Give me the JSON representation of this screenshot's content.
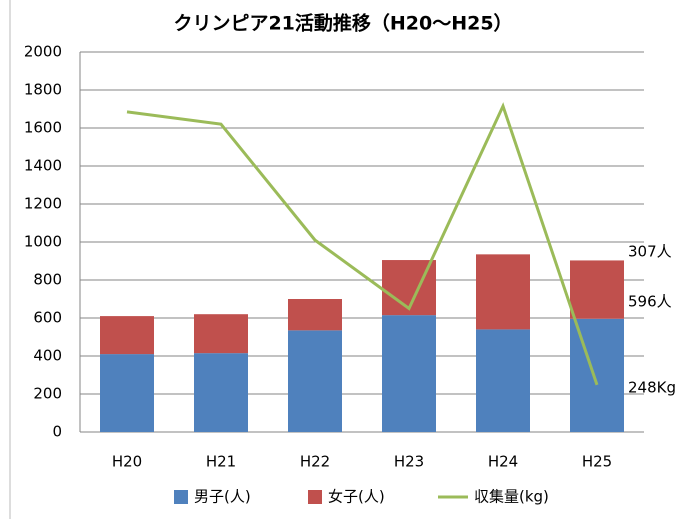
{
  "chart_data": {
    "type": "bar",
    "title": "クリンピア21活動推移（H20～H25）",
    "categories": [
      "H20",
      "H21",
      "H22",
      "H23",
      "H24",
      "H25"
    ],
    "series": [
      {
        "name": "男子(人)",
        "color": "#4f81bd",
        "values": [
          410,
          415,
          535,
          615,
          540,
          596
        ],
        "value_labels": [
          null,
          null,
          null,
          null,
          null,
          "596人"
        ]
      },
      {
        "name": "女子(人)",
        "color": "#c0504d",
        "values": [
          200,
          205,
          165,
          290,
          395,
          307
        ],
        "value_labels": [
          null,
          null,
          null,
          null,
          null,
          "307人"
        ]
      },
      {
        "name": "収集量(kg)",
        "type": "line",
        "color": "#9bbb59",
        "values": [
          1685,
          1620,
          1010,
          650,
          1715,
          248
        ],
        "value_labels": [
          null,
          null,
          null,
          null,
          null,
          "248Kg"
        ]
      }
    ],
    "ylim": [
      0,
      2000
    ],
    "yticks": [
      0,
      200,
      400,
      600,
      800,
      1000,
      1200,
      1400,
      1600,
      1800,
      2000
    ],
    "grid": true,
    "legend": "bottom"
  }
}
